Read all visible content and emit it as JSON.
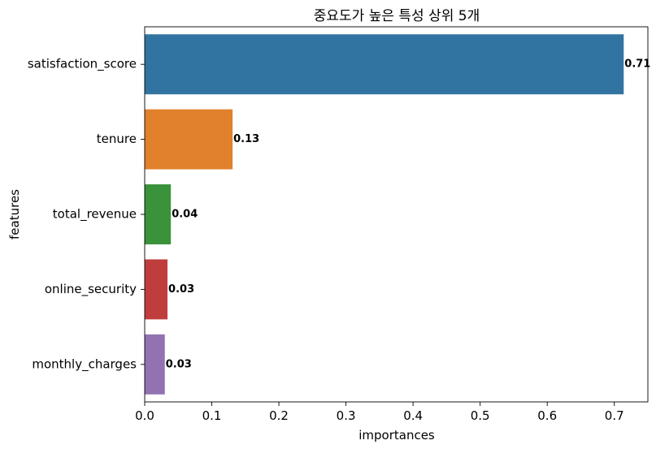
{
  "chart_data": {
    "type": "bar",
    "orientation": "horizontal",
    "title": "중요도가 높은 특성 상위 5개",
    "xlabel": "importances",
    "ylabel": "features",
    "categories": [
      "satisfaction_score",
      "tenure",
      "total_revenue",
      "online_security",
      "monthly_charges"
    ],
    "values": [
      0.714,
      0.131,
      0.039,
      0.034,
      0.03
    ],
    "data_labels": [
      "0.71",
      "0.13",
      "0.04",
      "0.03",
      "0.03"
    ],
    "colors": [
      "#3274a1",
      "#e1812c",
      "#3a923a",
      "#c03d3e",
      "#9372b2"
    ],
    "xlim": [
      0,
      0.75
    ],
    "xticks": [
      0.0,
      0.1,
      0.2,
      0.3,
      0.4,
      0.5,
      0.6,
      0.7
    ],
    "xtick_labels": [
      "0.0",
      "0.1",
      "0.2",
      "0.3",
      "0.4",
      "0.5",
      "0.6",
      "0.7"
    ],
    "grid": false,
    "legend": "none"
  }
}
